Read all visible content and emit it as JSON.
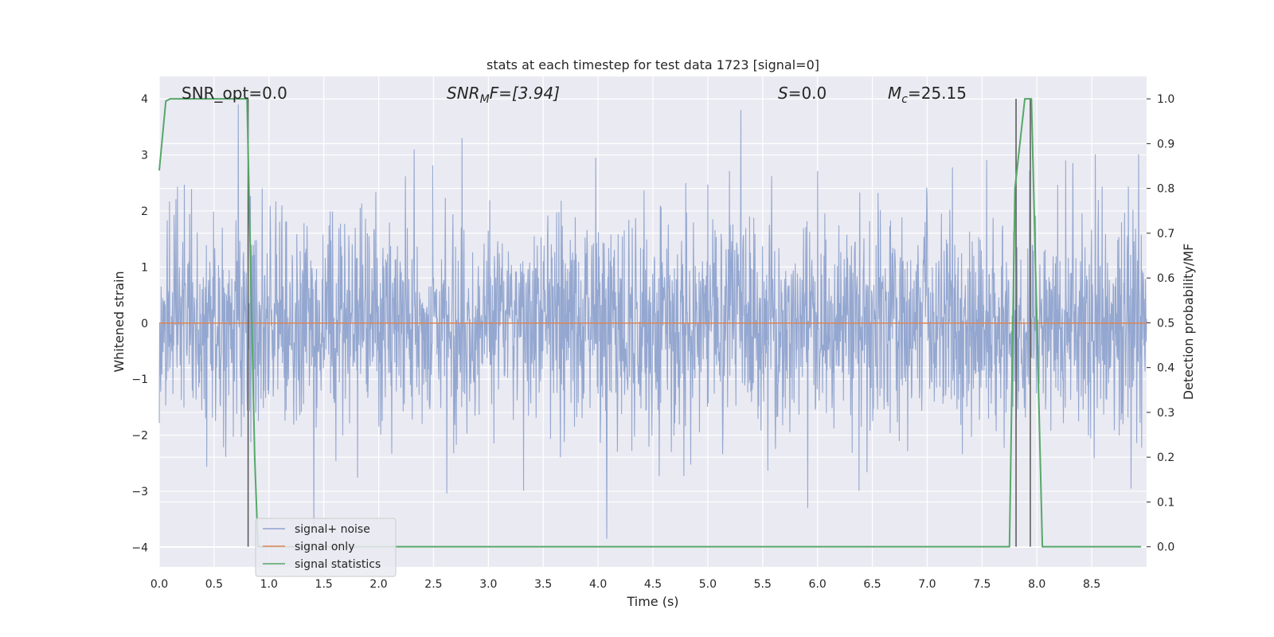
{
  "chart_data": {
    "type": "line",
    "title": "stats at each timestep for test data 1723 [signal=0]",
    "xlabel": "Time (s)",
    "ylabel": "Whitened strain",
    "y2label": "Detection probability/MF",
    "xlim": [
      0.0,
      9.0
    ],
    "ylim": [
      -4.35,
      4.4
    ],
    "y2lim": [
      -0.045,
      1.05
    ],
    "xticks": [
      "0.0",
      "0.5",
      "1.0",
      "1.5",
      "2.0",
      "2.5",
      "3.0",
      "3.5",
      "4.0",
      "4.5",
      "5.0",
      "5.5",
      "6.0",
      "6.5",
      "7.0",
      "7.5",
      "8.0",
      "8.5"
    ],
    "yticks": [
      "4",
      "3",
      "2",
      "1",
      "0",
      "−1",
      "−2",
      "−3",
      "−4"
    ],
    "y2ticks": [
      "1.0",
      "0.9",
      "0.8",
      "0.7",
      "0.6",
      "0.5",
      "0.4",
      "0.3",
      "0.2",
      "0.1",
      "0.0"
    ],
    "grid": true,
    "legend_placement": "lower-left",
    "annotations": {
      "snr_opt": "SNR_opt=0.0",
      "snr_mf_main": "SNR",
      "snr_mf_sub": "M",
      "snr_mf_rest": "F=[3.94]",
      "s_italic": "S",
      "s_rest": "=0.0",
      "mc_main": "M",
      "mc_sub": "c",
      "mc_rest": "=25.15"
    },
    "vertical_lines_x": [
      0.81,
      7.81,
      7.94
    ],
    "series": [
      {
        "name": "signal+ noise",
        "axis": "left",
        "color": "#8fa3cd",
        "description_values": "whitened noise strain, amplitude mostly within [-2, 2], peaks to about +3.9 and -3.9",
        "envelope_peaks": [
          [
            0.72,
            3.9
          ],
          [
            2.76,
            3.3
          ],
          [
            5.3,
            3.8
          ],
          [
            1.41,
            -3.7
          ],
          [
            4.08,
            -3.85
          ],
          [
            5.91,
            -3.3
          ]
        ]
      },
      {
        "name": "signal only",
        "axis": "left",
        "color": "#dd8452",
        "x": [
          0.0,
          9.0
        ],
        "y": [
          0.0,
          0.0
        ]
      },
      {
        "name": "signal statistics",
        "axis": "right",
        "color": "#55a868",
        "x": [
          0.0,
          0.06,
          0.1,
          0.2,
          0.5,
          0.8,
          0.87,
          0.9,
          7.75,
          7.8,
          7.89,
          7.95,
          8.05,
          8.1,
          8.95
        ],
        "y": [
          0.84,
          0.995,
          1.0,
          1.0,
          1.0,
          1.0,
          0.2,
          0.0,
          0.0,
          0.8,
          1.0,
          1.0,
          0.0,
          0.0,
          0.0
        ]
      }
    ]
  }
}
